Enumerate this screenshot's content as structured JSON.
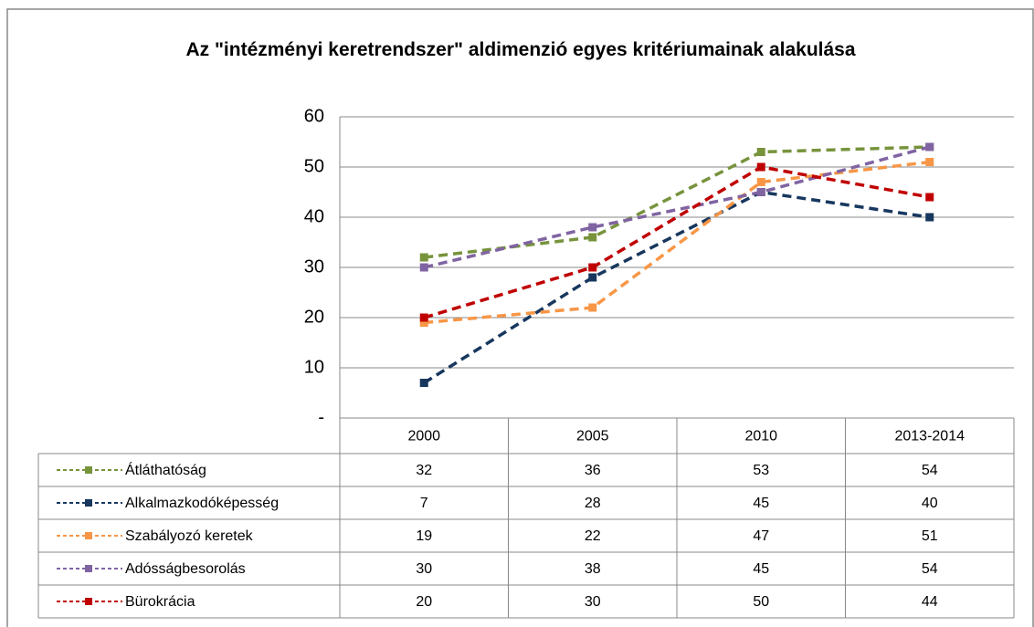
{
  "chart_data": {
    "type": "line",
    "title": "Az \"intézményi keretrendszer\" aldimenzió egyes kritériumainak alakulása",
    "categories": [
      "2000",
      "2005",
      "2010",
      "2013-2014"
    ],
    "series": [
      {
        "name": "Átláthatóság",
        "color": "#77933c",
        "values": [
          32,
          36,
          53,
          54
        ]
      },
      {
        "name": "Alkalmazkodóképesség",
        "color": "#17375e",
        "values": [
          7,
          28,
          45,
          40
        ]
      },
      {
        "name": "Szabályozó keretek",
        "color": "#f79646",
        "values": [
          19,
          22,
          47,
          51
        ]
      },
      {
        "name": "Adósságbesorolás",
        "color": "#8064a2",
        "values": [
          30,
          38,
          45,
          54
        ]
      },
      {
        "name": "Bürokrácia",
        "color": "#c00000",
        "values": [
          20,
          30,
          50,
          44
        ]
      }
    ],
    "ylim": [
      0,
      60
    ],
    "yticks": [
      {
        "value": 0,
        "label": "-"
      },
      10,
      20,
      30,
      40,
      50,
      60
    ],
    "grid": true,
    "data_table": true
  }
}
